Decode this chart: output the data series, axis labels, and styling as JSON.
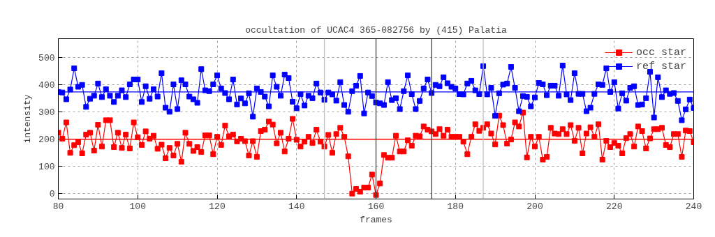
{
  "chart_data": {
    "type": "line",
    "title": "occultation of UCAC4 365-082756 by (415) Palatia",
    "xlabel": "frames",
    "ylabel": "intensity",
    "x": [
      80,
      81,
      82,
      83,
      84,
      85,
      86,
      87,
      88,
      89,
      90,
      91,
      92,
      93,
      94,
      95,
      96,
      97,
      98,
      99,
      100,
      101,
      102,
      103,
      104,
      105,
      106,
      107,
      108,
      109,
      110,
      111,
      112,
      113,
      114,
      115,
      116,
      117,
      118,
      119,
      120,
      121,
      122,
      123,
      124,
      125,
      126,
      127,
      128,
      129,
      130,
      131,
      132,
      133,
      134,
      135,
      136,
      137,
      138,
      139,
      140,
      141,
      142,
      143,
      144,
      145,
      146,
      147,
      148,
      149,
      150,
      151,
      152,
      153,
      154,
      155,
      156,
      157,
      158,
      159,
      160,
      161,
      162,
      163,
      164,
      165,
      166,
      167,
      168,
      169,
      170,
      171,
      172,
      173,
      174,
      175,
      176,
      177,
      178,
      179,
      180,
      181,
      182,
      183,
      184,
      185,
      186,
      187,
      188,
      189,
      190,
      191,
      192,
      193,
      194,
      195,
      196,
      197,
      198,
      199,
      200,
      201,
      202,
      203,
      204,
      205,
      206,
      207,
      208,
      209,
      210,
      211,
      212,
      213,
      214,
      215,
      216,
      217,
      218,
      219,
      220,
      221,
      222,
      223,
      224,
      225,
      226,
      227,
      228,
      229,
      230,
      231,
      232,
      233,
      234,
      235,
      236,
      237,
      238,
      239,
      240
    ],
    "series": [
      {
        "name": "occ star",
        "color": "#ff0000",
        "values": [
          224,
          202,
          262,
          150,
          178,
          189,
          148,
          217,
          224,
          158,
          253,
          173,
          270,
          270,
          171,
          224,
          168,
          217,
          166,
          262,
          207,
          179,
          229,
          202,
          213,
          165,
          180,
          130,
          168,
          140,
          183,
          117,
          224,
          183,
          157,
          171,
          153,
          214,
          214,
          145,
          209,
          179,
          250,
          211,
          217,
          192,
          202,
          193,
          140,
          193,
          135,
          230,
          235,
          265,
          254,
          185,
          224,
          155,
          202,
          275,
          198,
          173,
          191,
          209,
          186,
          235,
          191,
          173,
          216,
          150,
          219,
          242,
          209,
          137,
          0,
          17,
          7,
          22,
          22,
          70,
          -5,
          37,
          142,
          132,
          132,
          213,
          155,
          155,
          196,
          176,
          213,
          211,
          247,
          235,
          229,
          219,
          237,
          213,
          235,
          209,
          209,
          209,
          191,
          145,
          209,
          255,
          231,
          242,
          255,
          221,
          181,
          287,
          252,
          184,
          199,
          262,
          247,
          298,
          133,
          209,
          173,
          209,
          125,
          135,
          242,
          221,
          219,
          237,
          219,
          252,
          194,
          242,
          148,
          221,
          244,
          209,
          255,
          125,
          194,
          171,
          186,
          176,
          148,
          204,
          219,
          173,
          247,
          230,
          166,
          203,
          237,
          237,
          242,
          179,
          171,
          219,
          219,
          135,
          232,
          230,
          189
        ]
      },
      {
        "name": "ref star",
        "color": "#0000ff",
        "values": [
          374,
          372,
          347,
          383,
          461,
          393,
          400,
          319,
          349,
          360,
          405,
          355,
          384,
          360,
          337,
          360,
          380,
          355,
          402,
          420,
          420,
          337,
          395,
          349,
          384,
          357,
          443,
          316,
          301,
          402,
          311,
          417,
          402,
          357,
          347,
          334,
          458,
          380,
          377,
          402,
          435,
          387,
          370,
          347,
          420,
          328,
          350,
          332,
          369,
          283,
          387,
          374,
          357,
          321,
          435,
          393,
          360,
          438,
          425,
          338,
          314,
          366,
          324,
          360,
          351,
          405,
          372,
          345,
          372,
          365,
          342,
          410,
          326,
          301,
          377,
          397,
          433,
          295,
          372,
          359,
          335,
          332,
          326,
          410,
          344,
          351,
          311,
          377,
          435,
          366,
          311,
          341,
          387,
          420,
          370,
          400,
          395,
          428,
          406,
          393,
          387,
          366,
          365,
          405,
          415,
          380,
          366,
          469,
          365,
          389,
          286,
          369,
          401,
          405,
          466,
          389,
          303,
          359,
          356,
          321,
          354,
          407,
          402,
          362,
          397,
          397,
          360,
          471,
          365,
          344,
          443,
          367,
          367,
          303,
          316,
          367,
          402,
          400,
          461,
          374,
          410,
          313,
          369,
          342,
          389,
          395,
          326,
          328,
          351,
          448,
          280,
          428,
          355,
          380,
          367,
          370,
          341,
          270,
          310,
          346,
          315
        ]
      }
    ],
    "xlim": [
      80,
      240
    ],
    "xticks": [
      80,
      100,
      120,
      140,
      160,
      180,
      200,
      220,
      240
    ],
    "ylim": [
      -20,
      570
    ],
    "yticks": [
      0,
      100,
      200,
      300,
      400,
      500
    ],
    "ref_lines": [
      {
        "axis": "y",
        "value": 200,
        "color": "#ff0000"
      },
      {
        "axis": "y",
        "value": 374,
        "color": "#0000ff"
      },
      {
        "axis": "x",
        "value": 147,
        "color": "#c0c0c0"
      },
      {
        "axis": "x",
        "value": 160,
        "color": "#404040"
      },
      {
        "axis": "x",
        "value": 174,
        "color": "#404040"
      },
      {
        "axis": "x",
        "value": 187,
        "color": "#c0c0c0"
      }
    ],
    "grid": true,
    "legend": "top right",
    "marker": "square",
    "line_style": "solid"
  }
}
